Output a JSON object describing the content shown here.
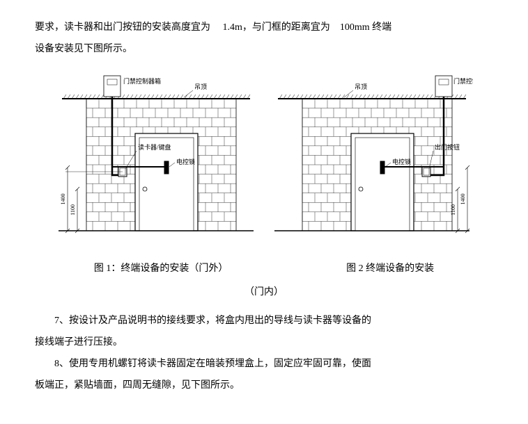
{
  "text": {
    "para1a": "要求，读卡器和出门按钮的安装高度宜为",
    "para1b": "1.4m，与门框的距离宜为",
    "para1c": "100mm 终端",
    "para1d": "设备安装见下图所示。",
    "caption1": "图 1：终端设备的安装（门外）",
    "caption2": "图 2  终端设备的安装",
    "caption2sub": "（门内）",
    "para7": "7、按设计及产品说明书的接线要求，将盒内甩出的导线与读卡器等设备的",
    "para7b": "接线端子进行压接。",
    "para8": "8、使用专用机螺钉将读卡器固定在暗装预埋盒上，固定应牢固可靠，使面",
    "para8b": "板端正，紧贴墙面，四周无缝隙，见下图所示。"
  },
  "diagram": {
    "labels": {
      "controller_box": "门禁控制器箱",
      "ceiling": "吊顶",
      "reader_keypad": "读卡器/键盘",
      "electric_lock": "电控锁",
      "exit_button": "出门按钮"
    },
    "dims": {
      "h_total": "1400",
      "h_lower": "1100"
    },
    "colors": {
      "stroke": "#000000",
      "fill_none": "none",
      "fill_white": "#ffffff"
    },
    "stroke_width": 0.8,
    "brick": {
      "rows": 12,
      "cols": 10
    }
  }
}
